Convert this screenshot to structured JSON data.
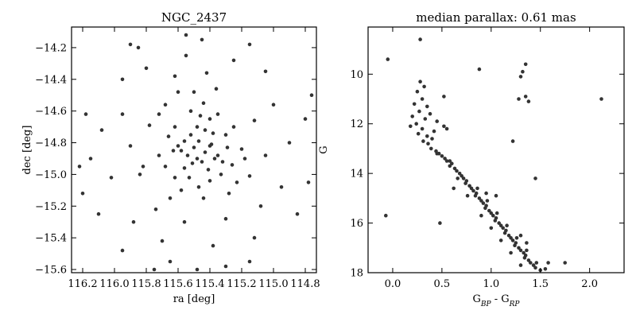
{
  "chart_data": [
    {
      "type": "scatter",
      "title": "NGC_2437",
      "xlabel": "ra [deg]",
      "ylabel": "dec [deg]",
      "xlim": [
        116.27,
        114.73
      ],
      "ylim": [
        -15.62,
        -14.07
      ],
      "xticks": [
        116.2,
        116.0,
        115.8,
        115.6,
        115.4,
        115.2,
        115.0,
        114.8
      ],
      "xtick_labels": [
        "116.2",
        "116.0",
        "115.8",
        "115.6",
        "115.4",
        "115.2",
        "115.0",
        "114.8"
      ],
      "yticks": [
        -14.2,
        -14.4,
        -14.6,
        -14.8,
        -15.0,
        -15.2,
        -15.4,
        -15.6
      ],
      "ytick_labels": [
        "−14.2",
        "−14.4",
        "−14.6",
        "−14.8",
        "−15.0",
        "−15.2",
        "−15.4",
        "−15.6"
      ],
      "x_inverted": true,
      "grid": false,
      "marker_color": "#333333",
      "points": [
        [
          115.5,
          -14.83
        ],
        [
          115.47,
          -14.79
        ],
        [
          115.43,
          -14.86
        ],
        [
          115.54,
          -14.88
        ],
        [
          115.39,
          -14.81
        ],
        [
          115.52,
          -14.75
        ],
        [
          115.45,
          -14.92
        ],
        [
          115.6,
          -14.82
        ],
        [
          115.35,
          -14.88
        ],
        [
          115.48,
          -14.7
        ],
        [
          115.41,
          -14.97
        ],
        [
          115.56,
          -14.96
        ],
        [
          115.66,
          -14.76
        ],
        [
          115.3,
          -14.75
        ],
        [
          115.46,
          -14.63
        ],
        [
          115.4,
          -15.04
        ],
        [
          115.62,
          -15.02
        ],
        [
          115.26,
          -14.94
        ],
        [
          115.72,
          -14.88
        ],
        [
          115.52,
          -14.6
        ],
        [
          115.35,
          -14.62
        ],
        [
          115.58,
          -15.1
        ],
        [
          115.2,
          -14.84
        ],
        [
          115.78,
          -14.69
        ],
        [
          115.44,
          -15.15
        ],
        [
          115.68,
          -14.56
        ],
        [
          115.28,
          -15.12
        ],
        [
          115.15,
          -15.01
        ],
        [
          115.84,
          -15.0
        ],
        [
          115.5,
          -14.48
        ],
        [
          115.36,
          -14.46
        ],
        [
          115.74,
          -15.22
        ],
        [
          115.12,
          -14.66
        ],
        [
          115.9,
          -14.82
        ],
        [
          115.56,
          -15.3
        ],
        [
          115.3,
          -15.28
        ],
        [
          115.95,
          -14.62
        ],
        [
          115.05,
          -14.88
        ],
        [
          115.62,
          -14.38
        ],
        [
          115.42,
          -14.36
        ],
        [
          115.88,
          -15.3
        ],
        [
          115.08,
          -15.2
        ],
        [
          116.02,
          -15.02
        ],
        [
          115.0,
          -14.56
        ],
        [
          115.7,
          -15.42
        ],
        [
          115.38,
          -15.45
        ],
        [
          116.08,
          -14.72
        ],
        [
          114.95,
          -15.08
        ],
        [
          115.8,
          -14.33
        ],
        [
          115.25,
          -14.28
        ],
        [
          115.55,
          -14.25
        ],
        [
          116.1,
          -15.25
        ],
        [
          114.9,
          -14.8
        ],
        [
          115.95,
          -15.48
        ],
        [
          115.12,
          -15.4
        ],
        [
          115.45,
          -14.15
        ],
        [
          116.15,
          -14.9
        ],
        [
          114.85,
          -15.25
        ],
        [
          115.65,
          -15.55
        ],
        [
          115.3,
          -15.58
        ],
        [
          116.18,
          -14.62
        ],
        [
          114.8,
          -14.65
        ],
        [
          115.85,
          -14.2
        ],
        [
          115.15,
          -14.18
        ],
        [
          116.2,
          -15.12
        ],
        [
          114.78,
          -15.05
        ],
        [
          115.55,
          -14.12
        ],
        [
          115.95,
          -14.4
        ],
        [
          115.05,
          -14.35
        ],
        [
          115.75,
          -15.6
        ],
        [
          116.22,
          -14.95
        ],
        [
          114.76,
          -14.5
        ],
        [
          115.48,
          -15.6
        ],
        [
          115.9,
          -14.18
        ],
        [
          115.15,
          -15.55
        ],
        [
          115.4,
          -14.65
        ],
        [
          115.62,
          -14.7
        ],
        [
          115.33,
          -15.0
        ],
        [
          115.58,
          -14.85
        ],
        [
          115.47,
          -15.08
        ],
        [
          115.25,
          -14.7
        ],
        [
          115.68,
          -14.95
        ],
        [
          115.38,
          -14.74
        ],
        [
          115.53,
          -15.02
        ],
        [
          115.44,
          -14.55
        ],
        [
          115.65,
          -15.15
        ],
        [
          115.32,
          -14.92
        ],
        [
          115.72,
          -14.62
        ],
        [
          115.23,
          -15.05
        ],
        [
          115.6,
          -14.48
        ],
        [
          115.18,
          -14.9
        ],
        [
          115.82,
          -14.95
        ],
        [
          115.48,
          -14.9
        ],
        [
          115.4,
          -14.82
        ],
        [
          115.56,
          -14.79
        ],
        [
          115.43,
          -14.72
        ],
        [
          115.51,
          -14.93
        ],
        [
          115.37,
          -14.9
        ],
        [
          115.63,
          -14.85
        ],
        [
          115.29,
          -14.83
        ]
      ]
    },
    {
      "type": "scatter",
      "title": "median parallax: 0.61 mas",
      "xlabel": "G_BP - G_RP",
      "ylabel": "G",
      "xlim": [
        -0.25,
        2.35
      ],
      "ylim": [
        18.0,
        8.1
      ],
      "xticks": [
        0.0,
        0.5,
        1.0,
        1.5,
        2.0
      ],
      "xtick_labels": [
        "0.0",
        "0.5",
        "1.0",
        "1.5",
        "2.0"
      ],
      "yticks": [
        10,
        12,
        14,
        16,
        18
      ],
      "ytick_labels": [
        "10",
        "12",
        "14",
        "16",
        "18"
      ],
      "y_inverted": true,
      "grid": false,
      "marker_color": "#333333",
      "points": [
        [
          0.28,
          10.3
        ],
        [
          0.32,
          10.5
        ],
        [
          0.25,
          10.7
        ],
        [
          0.3,
          11.0
        ],
        [
          0.22,
          11.2
        ],
        [
          0.35,
          11.3
        ],
        [
          0.27,
          11.5
        ],
        [
          0.2,
          11.7
        ],
        [
          0.33,
          11.8
        ],
        [
          0.38,
          11.6
        ],
        [
          0.24,
          12.0
        ],
        [
          0.18,
          12.1
        ],
        [
          0.3,
          12.2
        ],
        [
          0.26,
          12.4
        ],
        [
          0.35,
          12.5
        ],
        [
          0.4,
          12.6
        ],
        [
          0.31,
          12.7
        ],
        [
          0.45,
          11.9
        ],
        [
          0.52,
          12.1
        ],
        [
          0.42,
          12.3
        ],
        [
          0.36,
          12.8
        ],
        [
          0.39,
          13.0
        ],
        [
          0.44,
          13.1
        ],
        [
          0.5,
          13.3
        ],
        [
          0.47,
          13.2
        ],
        [
          0.55,
          13.5
        ],
        [
          0.53,
          13.4
        ],
        [
          0.6,
          13.6
        ],
        [
          0.58,
          13.7
        ],
        [
          0.63,
          13.8
        ],
        [
          0.65,
          13.9
        ],
        [
          0.68,
          14.0
        ],
        [
          0.7,
          14.1
        ],
        [
          0.72,
          14.2
        ],
        [
          0.75,
          14.3
        ],
        [
          0.74,
          14.4
        ],
        [
          0.78,
          14.5
        ],
        [
          0.8,
          14.6
        ],
        [
          0.82,
          14.7
        ],
        [
          0.85,
          14.8
        ],
        [
          0.84,
          14.9
        ],
        [
          0.88,
          15.0
        ],
        [
          0.9,
          15.1
        ],
        [
          0.92,
          15.2
        ],
        [
          0.95,
          15.3
        ],
        [
          0.94,
          15.4
        ],
        [
          0.98,
          15.5
        ],
        [
          1.0,
          15.6
        ],
        [
          1.02,
          15.7
        ],
        [
          1.05,
          15.8
        ],
        [
          1.04,
          15.9
        ],
        [
          1.08,
          16.0
        ],
        [
          1.1,
          16.1
        ],
        [
          1.12,
          16.2
        ],
        [
          1.15,
          16.3
        ],
        [
          1.14,
          16.4
        ],
        [
          1.18,
          16.5
        ],
        [
          1.2,
          16.6
        ],
        [
          1.22,
          16.7
        ],
        [
          1.25,
          16.8
        ],
        [
          1.24,
          16.9
        ],
        [
          1.28,
          17.0
        ],
        [
          1.3,
          17.1
        ],
        [
          1.33,
          17.2
        ],
        [
          1.35,
          17.3
        ],
        [
          1.34,
          17.4
        ],
        [
          1.38,
          17.5
        ],
        [
          1.4,
          17.6
        ],
        [
          1.43,
          17.7
        ],
        [
          1.45,
          17.8
        ],
        [
          1.5,
          17.9
        ],
        [
          1.55,
          17.85
        ],
        [
          0.45,
          13.2
        ],
        [
          0.58,
          13.5
        ],
        [
          0.66,
          14.2
        ],
        [
          0.86,
          14.6
        ],
        [
          0.96,
          15.1
        ],
        [
          1.06,
          15.6
        ],
        [
          1.16,
          16.1
        ],
        [
          1.26,
          16.6
        ],
        [
          1.36,
          17.1
        ],
        [
          1.46,
          17.6
        ],
        [
          0.62,
          14.6
        ],
        [
          0.76,
          14.9
        ],
        [
          0.9,
          15.7
        ],
        [
          1.0,
          16.2
        ],
        [
          1.1,
          16.7
        ],
        [
          1.2,
          17.2
        ],
        [
          1.3,
          17.7
        ],
        [
          0.28,
          8.6
        ],
        [
          -0.05,
          9.4
        ],
        [
          0.88,
          9.8
        ],
        [
          1.35,
          9.6
        ],
        [
          1.32,
          9.9
        ],
        [
          1.3,
          10.1
        ],
        [
          2.12,
          11.0
        ],
        [
          1.35,
          10.9
        ],
        [
          1.28,
          11.0
        ],
        [
          1.38,
          11.1
        ],
        [
          0.52,
          10.9
        ],
        [
          1.22,
          12.7
        ],
        [
          1.45,
          14.2
        ],
        [
          -0.07,
          15.7
        ],
        [
          0.48,
          16.0
        ],
        [
          1.58,
          17.6
        ],
        [
          1.75,
          17.6
        ],
        [
          1.3,
          16.5
        ],
        [
          1.36,
          16.8
        ],
        [
          0.95,
          14.8
        ],
        [
          1.05,
          14.9
        ],
        [
          0.55,
          12.2
        ]
      ]
    }
  ]
}
